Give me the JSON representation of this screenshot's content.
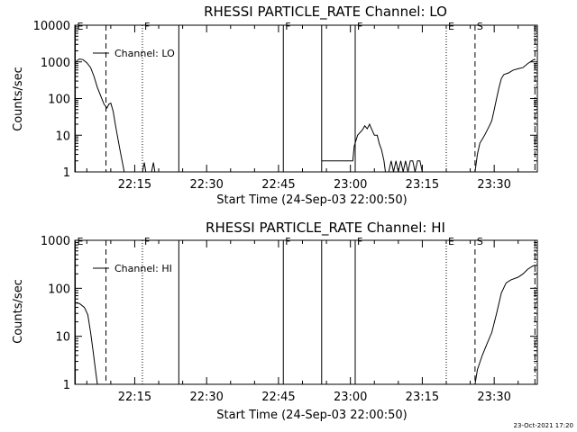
{
  "footer": {
    "timestamp": "23-Oct-2021 17:20"
  },
  "chart_data": [
    {
      "type": "line",
      "title": "RHESSI PARTICLE_RATE Channel: LO",
      "xlabel": "Start Time (24-Sep-03 22:00:50)",
      "ylabel": "Counts/sec",
      "y_scale": "log",
      "ylim": [
        1,
        10000
      ],
      "xlim_minutes": [
        2.5,
        99
      ],
      "y_ticks": [
        "1",
        "10",
        "100",
        "1000",
        "10000"
      ],
      "x_ticks": [
        {
          "label": "22:15",
          "t": 15
        },
        {
          "label": "22:30",
          "t": 30
        },
        {
          "label": "22:45",
          "t": 45
        },
        {
          "label": "23:00",
          "t": 60
        },
        {
          "label": "23:15",
          "t": 75
        },
        {
          "label": "23:30",
          "t": 90
        }
      ],
      "legend": {
        "label": "Channel: LO",
        "placement": "top-left"
      },
      "markers": [
        {
          "t": 2.6,
          "style": "solid",
          "label": "E"
        },
        {
          "t": 9.0,
          "style": "dashed",
          "label": ""
        },
        {
          "t": 16.6,
          "style": "dotted",
          "label": "F"
        },
        {
          "t": 24.2,
          "style": "solid",
          "label": ""
        },
        {
          "t": 46.0,
          "style": "solid",
          "label": "F"
        },
        {
          "t": 54.0,
          "style": "solid",
          "label": ""
        },
        {
          "t": 61.0,
          "style": "solid",
          "label": "F"
        },
        {
          "t": 80.0,
          "style": "dotted",
          "label": "E"
        },
        {
          "t": 86.0,
          "style": "dashed",
          "label": "S"
        },
        {
          "t": 98.5,
          "style": "dashdot",
          "label": ""
        }
      ],
      "segments": [
        [
          [
            2.5,
            900
          ],
          [
            3.0,
            1100
          ],
          [
            3.5,
            1200
          ],
          [
            4.2,
            1150
          ],
          [
            5.0,
            950
          ],
          [
            5.8,
            700
          ],
          [
            6.5,
            400
          ],
          [
            7.2,
            200
          ],
          [
            8.0,
            110
          ],
          [
            8.6,
            70
          ],
          [
            9.2,
            55
          ],
          [
            9.6,
            70
          ],
          [
            10.0,
            75
          ],
          [
            10.5,
            45
          ],
          [
            11.0,
            18
          ],
          [
            11.5,
            8
          ],
          [
            12.0,
            3.5
          ],
          [
            12.5,
            1.6
          ],
          [
            12.8,
            1
          ]
        ],
        [
          [
            16.6,
            1
          ],
          [
            17.0,
            1.8
          ],
          [
            17.3,
            1
          ],
          [
            18.5,
            1
          ],
          [
            18.9,
            1.8
          ],
          [
            19.2,
            1
          ]
        ],
        [
          [
            54.0,
            2
          ],
          [
            60.5,
            2
          ],
          [
            60.8,
            5
          ],
          [
            61.5,
            10
          ],
          [
            62.5,
            14
          ],
          [
            63.0,
            18
          ],
          [
            63.5,
            15
          ],
          [
            64.0,
            20
          ],
          [
            64.5,
            14
          ],
          [
            65.0,
            10
          ],
          [
            65.6,
            10
          ],
          [
            66.0,
            6
          ],
          [
            66.5,
            4
          ],
          [
            67.0,
            2
          ],
          [
            67.3,
            1
          ]
        ],
        [
          [
            68.0,
            1
          ],
          [
            68.5,
            2
          ],
          [
            69.0,
            1
          ],
          [
            69.5,
            2
          ],
          [
            70.0,
            1
          ],
          [
            70.5,
            2
          ],
          [
            71.0,
            1
          ],
          [
            71.5,
            2
          ],
          [
            72.0,
            1
          ],
          [
            72.5,
            2
          ],
          [
            73.0,
            2
          ],
          [
            73.5,
            1
          ],
          [
            74.0,
            2
          ],
          [
            74.5,
            2
          ],
          [
            75.0,
            1
          ]
        ],
        [
          [
            86.0,
            1
          ],
          [
            86.5,
            3
          ],
          [
            87.0,
            6
          ],
          [
            88.0,
            10
          ],
          [
            89.0,
            18
          ],
          [
            89.5,
            25
          ],
          [
            90.0,
            50
          ],
          [
            90.5,
            100
          ],
          [
            91.0,
            200
          ],
          [
            91.5,
            350
          ],
          [
            92.0,
            450
          ],
          [
            93.0,
            500
          ],
          [
            94.0,
            600
          ],
          [
            95.0,
            650
          ],
          [
            96.0,
            700
          ],
          [
            97.0,
            900
          ],
          [
            98.0,
            1100
          ],
          [
            98.5,
            1200
          ]
        ]
      ]
    },
    {
      "type": "line",
      "title": "RHESSI PARTICLE_RATE Channel: HI",
      "xlabel": "Start Time (24-Sep-03 22:00:50)",
      "ylabel": "Counts/sec",
      "y_scale": "log",
      "ylim": [
        1,
        1000
      ],
      "xlim_minutes": [
        2.5,
        99
      ],
      "y_ticks": [
        "1",
        "10",
        "100",
        "1000"
      ],
      "x_ticks": [
        {
          "label": "22:15",
          "t": 15
        },
        {
          "label": "22:30",
          "t": 30
        },
        {
          "label": "22:45",
          "t": 45
        },
        {
          "label": "23:00",
          "t": 60
        },
        {
          "label": "23:15",
          "t": 75
        },
        {
          "label": "23:30",
          "t": 90
        }
      ],
      "legend": {
        "label": "Channel: HI",
        "placement": "top-left"
      },
      "markers": [
        {
          "t": 2.6,
          "style": "solid",
          "label": "E"
        },
        {
          "t": 9.0,
          "style": "dashed",
          "label": ""
        },
        {
          "t": 16.6,
          "style": "dotted",
          "label": "F"
        },
        {
          "t": 24.2,
          "style": "solid",
          "label": ""
        },
        {
          "t": 46.0,
          "style": "solid",
          "label": "F"
        },
        {
          "t": 54.0,
          "style": "solid",
          "label": ""
        },
        {
          "t": 61.0,
          "style": "solid",
          "label": "F"
        },
        {
          "t": 80.0,
          "style": "dotted",
          "label": "E"
        },
        {
          "t": 86.0,
          "style": "dashed",
          "label": "S"
        },
        {
          "t": 98.5,
          "style": "dashdot",
          "label": ""
        }
      ],
      "segments": [
        [
          [
            2.5,
            50
          ],
          [
            3.5,
            48
          ],
          [
            4.5,
            40
          ],
          [
            5.2,
            28
          ],
          [
            5.8,
            12
          ],
          [
            6.3,
            5
          ],
          [
            6.8,
            2
          ],
          [
            7.2,
            1
          ]
        ],
        [
          [
            86.0,
            1
          ],
          [
            86.5,
            2
          ],
          [
            87.5,
            4
          ],
          [
            88.5,
            7
          ],
          [
            89.5,
            12
          ],
          [
            90.5,
            30
          ],
          [
            91.5,
            80
          ],
          [
            92.5,
            130
          ],
          [
            93.5,
            150
          ],
          [
            95.0,
            170
          ],
          [
            96.0,
            200
          ],
          [
            97.0,
            250
          ],
          [
            98.0,
            290
          ],
          [
            98.5,
            300
          ]
        ]
      ]
    }
  ]
}
